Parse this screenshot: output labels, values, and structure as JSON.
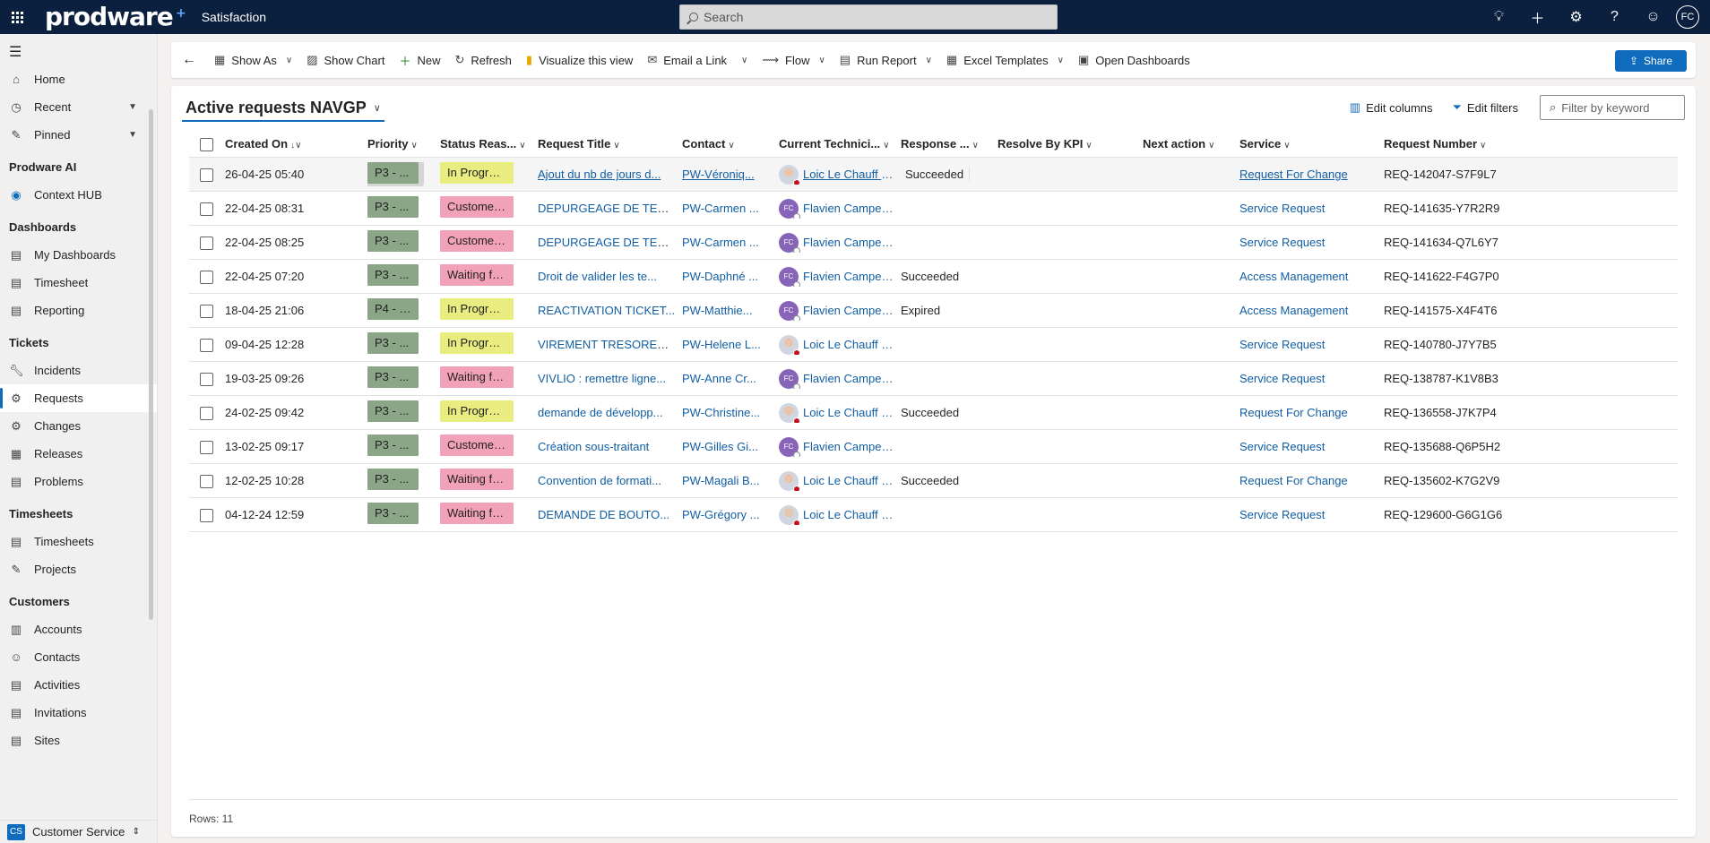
{
  "topbar": {
    "brand": "prodware",
    "app_title": "Satisfaction",
    "search_placeholder": "Search",
    "user_initials": "FC"
  },
  "sidebar": {
    "home": "Home",
    "recent": "Recent",
    "pinned": "Pinned",
    "group_ai": "Prodware AI",
    "context_hub": "Context HUB",
    "group_dashboards": "Dashboards",
    "my_dashboards": "My Dashboards",
    "timesheet": "Timesheet",
    "reporting": "Reporting",
    "group_tickets": "Tickets",
    "incidents": "Incidents",
    "requests": "Requests",
    "changes": "Changes",
    "releases": "Releases",
    "problems": "Problems",
    "group_timesheets": "Timesheets",
    "timesheets": "Timesheets",
    "projects": "Projects",
    "group_customers": "Customers",
    "accounts": "Accounts",
    "contacts": "Contacts",
    "activities": "Activities",
    "invitations": "Invitations",
    "sites": "Sites",
    "area_badge": "CS",
    "area_name": "Customer Service"
  },
  "commands": {
    "show_as": "Show As",
    "show_chart": "Show Chart",
    "new": "New",
    "refresh": "Refresh",
    "visualize": "Visualize this view",
    "email_link": "Email a Link",
    "flow": "Flow",
    "run_report": "Run Report",
    "excel_templates": "Excel Templates",
    "open_dashboards": "Open Dashboards",
    "share": "Share"
  },
  "view": {
    "title": "Active requests NAVGP",
    "edit_columns": "Edit columns",
    "edit_filters": "Edit filters",
    "filter_placeholder": "Filter by keyword"
  },
  "grid": {
    "columns": {
      "created_on": "Created On",
      "priority": "Priority",
      "status": "Status Reas...",
      "title": "Request Title",
      "contact": "Contact",
      "tech": "Current Technici...",
      "response": "Response ...",
      "resolve": "Resolve By KPI",
      "next_action": "Next action",
      "service": "Service",
      "request_number": "Request Number"
    },
    "rows": [
      {
        "created": "26-04-25 05:40",
        "priority": "P3 - ...",
        "status": "In Progress",
        "title": "Ajout du nb de jours d...",
        "contact": "PW-Véroniq...",
        "tech": "Loic Le Chauff De...",
        "response": "Succeeded",
        "resolve": "",
        "next": "",
        "service": "Request For Change",
        "reqnum": "REQ-142047-S7F9L7"
      },
      {
        "created": "22-04-25 08:31",
        "priority": "P3 - ...",
        "status": "Customer ...",
        "title": "DEPURGEAGE DE TEM...",
        "contact": "PW-Carmen ...",
        "tech": "Flavien Campeau...",
        "response": "",
        "resolve": "",
        "next": "",
        "service": "Service Request",
        "reqnum": "REQ-141635-Y7R2R9"
      },
      {
        "created": "22-04-25 08:25",
        "priority": "P3 - ...",
        "status": "Customer ...",
        "title": "DEPURGEAGE DE TEM...",
        "contact": "PW-Carmen ...",
        "tech": "Flavien Campeau...",
        "response": "",
        "resolve": "",
        "next": "",
        "service": "Service Request",
        "reqnum": "REQ-141634-Q7L6Y7"
      },
      {
        "created": "22-04-25 07:20",
        "priority": "P3 - ...",
        "status": "Waiting fo...",
        "title": "Droit de valider les te...",
        "contact": "PW-Daphné ...",
        "tech": "Flavien Campeau...",
        "response": "Succeeded",
        "resolve": "",
        "next": "",
        "service": "Access Management",
        "reqnum": "REQ-141622-F4G7P0"
      },
      {
        "created": "18-04-25 21:06",
        "priority": "P4 - L...",
        "status": "In Progress",
        "title": "REACTIVATION TICKET...",
        "contact": "PW-Matthie...",
        "tech": "Flavien Campeau...",
        "response": "Expired",
        "resolve": "",
        "next": "",
        "service": "Access Management",
        "reqnum": "REQ-141575-X4F4T6"
      },
      {
        "created": "09-04-25 12:28",
        "priority": "P3 - ...",
        "status": "In Progress",
        "title": "VIREMENT TRESORERI...",
        "contact": "PW-Helene L...",
        "tech": "Loic Le Chauff De...",
        "response": "",
        "resolve": "",
        "next": "",
        "service": "Service Request",
        "reqnum": "REQ-140780-J7Y7B5"
      },
      {
        "created": "19-03-25 09:26",
        "priority": "P3 - ...",
        "status": "Waiting fo...",
        "title": "VIVLIO : remettre ligne...",
        "contact": "PW-Anne Cr...",
        "tech": "Flavien Campeau...",
        "response": "",
        "resolve": "",
        "next": "",
        "service": "Service Request",
        "reqnum": "REQ-138787-K1V8B3"
      },
      {
        "created": "24-02-25 09:42",
        "priority": "P3 - ...",
        "status": "In Progress",
        "title": "demande de développ...",
        "contact": "PW-Christine...",
        "tech": "Loic Le Chauff De...",
        "response": "Succeeded",
        "resolve": "",
        "next": "",
        "service": "Request For Change",
        "reqnum": "REQ-136558-J7K7P4"
      },
      {
        "created": "13-02-25 09:17",
        "priority": "P3 - ...",
        "status": "Customer ...",
        "title": "Création sous-traitant",
        "contact": "PW-Gilles Gi...",
        "tech": "Flavien Campeau...",
        "response": "",
        "resolve": "",
        "next": "",
        "service": "Service Request",
        "reqnum": "REQ-135688-Q6P5H2"
      },
      {
        "created": "12-02-25 10:28",
        "priority": "P3 - ...",
        "status": "Waiting fo...",
        "title": "Convention de formati...",
        "contact": "PW-Magali B...",
        "tech": "Loic Le Chauff De...",
        "response": "Succeeded",
        "resolve": "",
        "next": "",
        "service": "Request For Change",
        "reqnum": "REQ-135602-K7G2V9"
      },
      {
        "created": "04-12-24 12:59",
        "priority": "P3 - ...",
        "status": "Waiting fo...",
        "title": "DEMANDE DE BOUTO...",
        "contact": "PW-Grégory ...",
        "tech": "Loic Le Chauff De...",
        "response": "",
        "resolve": "",
        "next": "",
        "service": "Service Request",
        "reqnum": "REQ-129600-G6G1G6"
      }
    ],
    "footer": "Rows: 11"
  }
}
